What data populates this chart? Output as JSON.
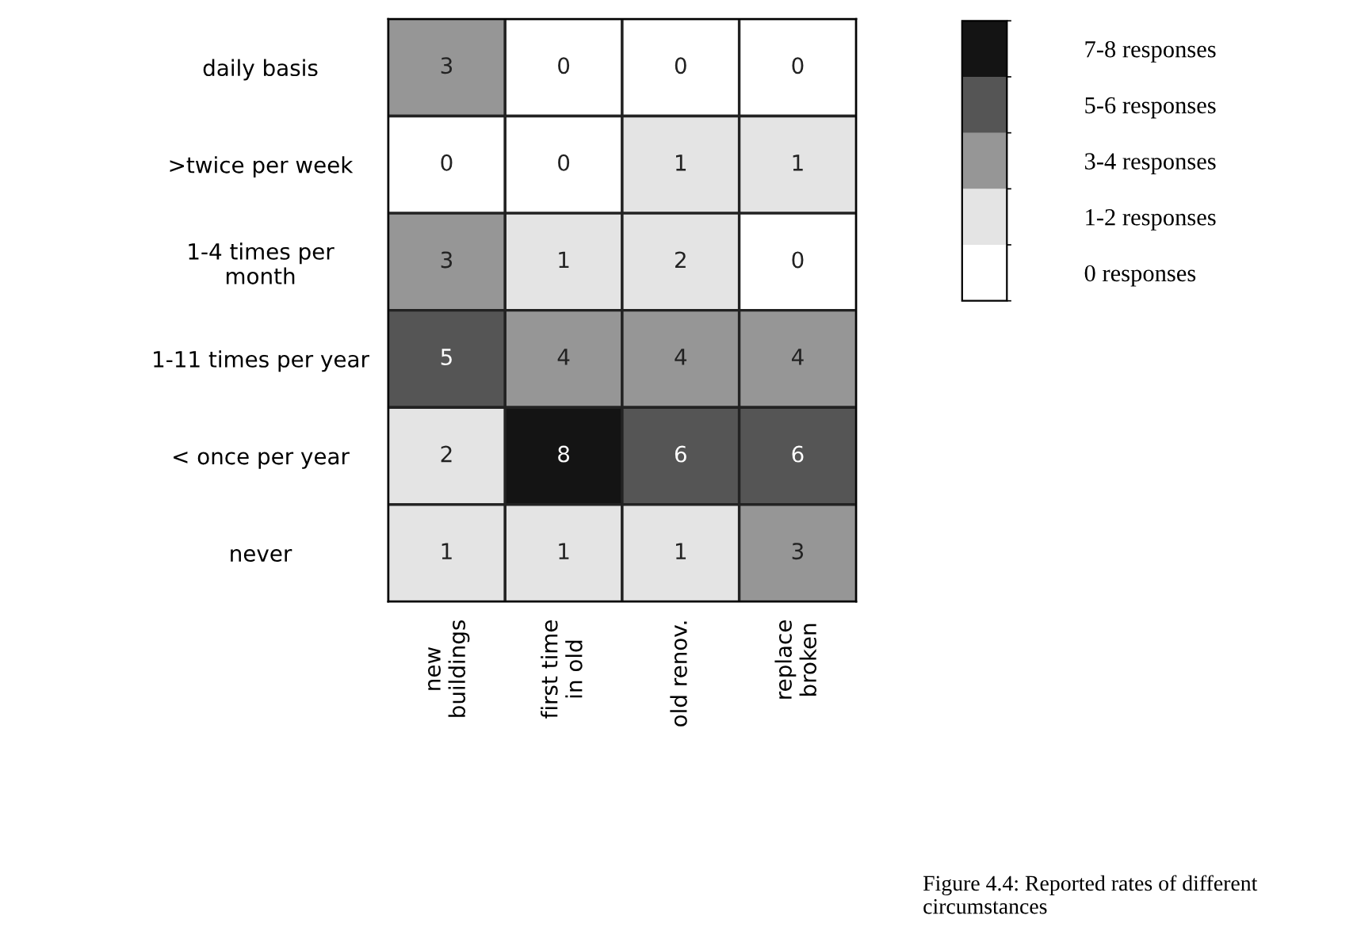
{
  "chart_data": {
    "type": "heatmap",
    "categories": [
      "new\nbuildings",
      "first time\nin old",
      "old renov.",
      "replace\nbroken"
    ],
    "y_categories": [
      "daily basis",
      ">twice per week",
      "1-4 times per\nmonth",
      "1-11 times per year",
      "< once per year",
      "never"
    ],
    "cells": [
      [
        3,
        0,
        0,
        0
      ],
      [
        0,
        0,
        1,
        1
      ],
      [
        3,
        1,
        2,
        0
      ],
      [
        5,
        4,
        4,
        4
      ],
      [
        2,
        8,
        6,
        6
      ],
      [
        1,
        1,
        1,
        3
      ]
    ],
    "data_labels": true,
    "clim": [
      -1.5,
      8.5
    ],
    "cticks": [
      {
        "value": -0.5,
        "label": "0 responses"
      },
      {
        "value": 1.5,
        "label": "1-2 responses"
      },
      {
        "value": 3.5,
        "label": "3-4 responses"
      },
      {
        "value": 5.5,
        "label": "5-6 responses"
      },
      {
        "value": 7.5,
        "label": "7-8 responses"
      }
    ],
    "colors": [
      "#ffffff",
      "#e4e4e4",
      "#969696",
      "#555555",
      "#141414"
    ],
    "annotations": [
      "Figure 4.4: Reported rates of different circumstances"
    ]
  }
}
